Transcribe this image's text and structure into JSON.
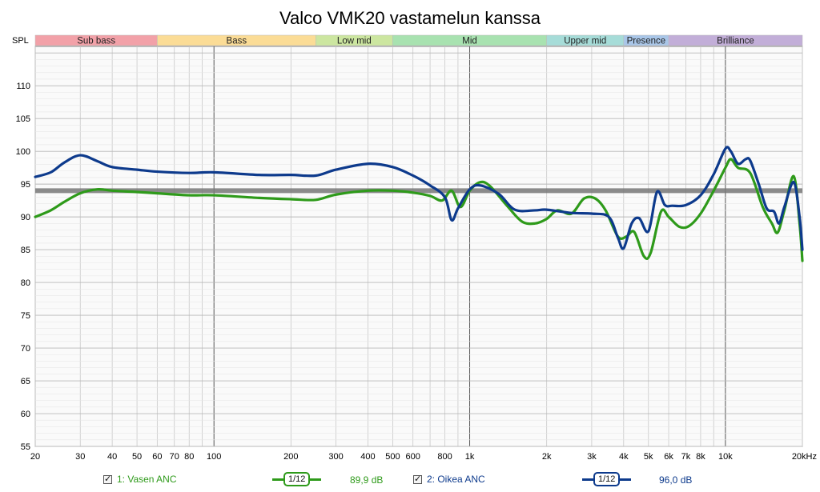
{
  "chart_data": {
    "type": "line",
    "title": "Valco VMK20 vastamelun kanssa",
    "ylabel": "SPL",
    "xscale": "log",
    "xlim": [
      20,
      20000
    ],
    "ylim": [
      55,
      116
    ],
    "y_ticks": [
      55,
      60,
      65,
      70,
      75,
      80,
      85,
      90,
      95,
      100,
      105,
      110
    ],
    "x_ticks": [
      {
        "v": 20,
        "label": "20"
      },
      {
        "v": 30,
        "label": "30"
      },
      {
        "v": 40,
        "label": "40"
      },
      {
        "v": 50,
        "label": "50"
      },
      {
        "v": 60,
        "label": "60"
      },
      {
        "v": 70,
        "label": "70"
      },
      {
        "v": 80,
        "label": "80"
      },
      {
        "v": 100,
        "label": "100"
      },
      {
        "v": 200,
        "label": "200"
      },
      {
        "v": 300,
        "label": "300"
      },
      {
        "v": 400,
        "label": "400"
      },
      {
        "v": 500,
        "label": "500"
      },
      {
        "v": 600,
        "label": "600"
      },
      {
        "v": 800,
        "label": "800"
      },
      {
        "v": 1000,
        "label": "1k"
      },
      {
        "v": 2000,
        "label": "2k"
      },
      {
        "v": 3000,
        "label": "3k"
      },
      {
        "v": 4000,
        "label": "4k"
      },
      {
        "v": 5000,
        "label": "5k"
      },
      {
        "v": 6000,
        "label": "6k"
      },
      {
        "v": 7000,
        "label": "7k"
      },
      {
        "v": 8000,
        "label": "8k"
      },
      {
        "v": 10000,
        "label": "10k"
      },
      {
        "v": 20000,
        "label": "20kHz"
      }
    ],
    "bands": [
      {
        "label": "Sub bass",
        "from": 20,
        "to": 60,
        "color": "#f2a1a8"
      },
      {
        "label": "Bass",
        "from": 60,
        "to": 250,
        "color": "#fbdc96"
      },
      {
        "label": "Low mid",
        "from": 250,
        "to": 500,
        "color": "#cce6a0"
      },
      {
        "label": "Mid",
        "from": 500,
        "to": 2000,
        "color": "#a8e2b0"
      },
      {
        "label": "Upper mid",
        "from": 2000,
        "to": 4000,
        "color": "#a6dcd8"
      },
      {
        "label": "Presence",
        "from": 4000,
        "to": 6000,
        "color": "#a9c6e8"
      },
      {
        "label": "Brilliance",
        "from": 6000,
        "to": 20000,
        "color": "#c2aed8"
      }
    ],
    "reference_level": 94,
    "series": [
      {
        "name": "1: Vasen ANC",
        "color": "#2e9a1a",
        "points": [
          [
            20,
            90.0
          ],
          [
            23,
            91.0
          ],
          [
            26,
            92.3
          ],
          [
            30,
            93.6
          ],
          [
            35,
            94.2
          ],
          [
            40,
            94.0
          ],
          [
            50,
            93.8
          ],
          [
            60,
            93.6
          ],
          [
            80,
            93.3
          ],
          [
            100,
            93.3
          ],
          [
            150,
            92.9
          ],
          [
            200,
            92.7
          ],
          [
            250,
            92.6
          ],
          [
            300,
            93.4
          ],
          [
            400,
            94.0
          ],
          [
            500,
            94.0
          ],
          [
            600,
            93.7
          ],
          [
            700,
            93.2
          ],
          [
            780,
            92.5
          ],
          [
            850,
            94.0
          ],
          [
            920,
            91.5
          ],
          [
            1000,
            94.0
          ],
          [
            1100,
            95.3
          ],
          [
            1200,
            94.7
          ],
          [
            1400,
            91.7
          ],
          [
            1600,
            89.3
          ],
          [
            1800,
            89.0
          ],
          [
            2000,
            89.7
          ],
          [
            2200,
            91.0
          ],
          [
            2500,
            90.5
          ],
          [
            2800,
            92.8
          ],
          [
            3100,
            92.8
          ],
          [
            3400,
            91.0
          ],
          [
            3800,
            87.0
          ],
          [
            4100,
            87.0
          ],
          [
            4400,
            87.7
          ],
          [
            4800,
            84.0
          ],
          [
            5100,
            84.5
          ],
          [
            5600,
            90.8
          ],
          [
            6000,
            90.0
          ],
          [
            6600,
            88.5
          ],
          [
            7200,
            88.6
          ],
          [
            8000,
            90.5
          ],
          [
            9000,
            94.0
          ],
          [
            10000,
            97.5
          ],
          [
            10500,
            98.8
          ],
          [
            11200,
            97.5
          ],
          [
            12500,
            96.7
          ],
          [
            14000,
            91.5
          ],
          [
            15200,
            89.0
          ],
          [
            16000,
            87.6
          ],
          [
            17000,
            91.0
          ],
          [
            18500,
            96.2
          ],
          [
            19500,
            89.0
          ],
          [
            20000,
            83.3
          ]
        ]
      },
      {
        "name": "2: Oikea ANC",
        "color": "#0d3a8c",
        "points": [
          [
            20,
            96.1
          ],
          [
            23,
            96.8
          ],
          [
            26,
            98.3
          ],
          [
            30,
            99.4
          ],
          [
            35,
            98.5
          ],
          [
            40,
            97.6
          ],
          [
            50,
            97.2
          ],
          [
            60,
            96.9
          ],
          [
            80,
            96.7
          ],
          [
            100,
            96.8
          ],
          [
            150,
            96.4
          ],
          [
            200,
            96.4
          ],
          [
            250,
            96.3
          ],
          [
            300,
            97.2
          ],
          [
            400,
            98.1
          ],
          [
            500,
            97.6
          ],
          [
            600,
            96.3
          ],
          [
            700,
            94.8
          ],
          [
            800,
            93.0
          ],
          [
            850,
            89.5
          ],
          [
            900,
            91.3
          ],
          [
            1000,
            94.2
          ],
          [
            1100,
            94.8
          ],
          [
            1300,
            93.5
          ],
          [
            1500,
            91.1
          ],
          [
            1800,
            91.0
          ],
          [
            2000,
            91.1
          ],
          [
            2500,
            90.6
          ],
          [
            3000,
            90.5
          ],
          [
            3500,
            90.0
          ],
          [
            3800,
            86.8
          ],
          [
            4000,
            85.2
          ],
          [
            4300,
            89.0
          ],
          [
            4600,
            89.8
          ],
          [
            5000,
            87.8
          ],
          [
            5400,
            93.8
          ],
          [
            5800,
            91.8
          ],
          [
            6200,
            91.7
          ],
          [
            7000,
            91.8
          ],
          [
            8000,
            93.3
          ],
          [
            9000,
            96.5
          ],
          [
            10000,
            100.4
          ],
          [
            10500,
            100.0
          ],
          [
            11200,
            98.1
          ],
          [
            12000,
            98.8
          ],
          [
            12500,
            98.6
          ],
          [
            13500,
            95.0
          ],
          [
            14500,
            91.3
          ],
          [
            15500,
            90.8
          ],
          [
            16200,
            89.0
          ],
          [
            17000,
            91.5
          ],
          [
            18500,
            95.3
          ],
          [
            19500,
            90.0
          ],
          [
            20000,
            85.0
          ]
        ]
      }
    ]
  },
  "legend": {
    "left": {
      "name": "1: Vasen ANC",
      "smoothing": "1/12",
      "value": "89,9 dB"
    },
    "right": {
      "name": "2: Oikea ANC",
      "smoothing": "1/12",
      "value": "96,0 dB"
    }
  }
}
